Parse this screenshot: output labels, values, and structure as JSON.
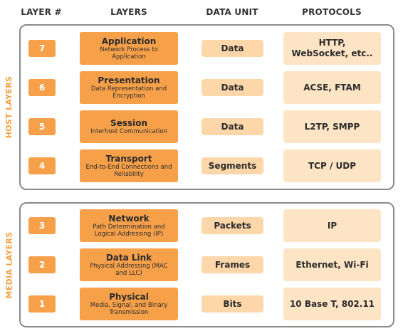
{
  "headers": {
    "layer_num": "LAYER #",
    "layers": "LAYERS",
    "data_unit": "DATA UNIT",
    "protocols": "PROTOCOLS"
  },
  "groups": {
    "host": "HOST LAYERS",
    "media": "MEDIA LAYERS"
  },
  "colors": {
    "number_box": "#f7a04a",
    "layer_box": "#f7a04a",
    "data_box": "#fdd7aa",
    "protocol_box": "#fde4c4",
    "group_border": "#8a8a8a",
    "group_label": "#f5a142"
  },
  "layers": [
    {
      "num": "7",
      "name": "Application",
      "desc": "Network Process to Application",
      "data_unit": "Data",
      "protocols": "HTTP, WebSocket, etc.."
    },
    {
      "num": "6",
      "name": "Presentation",
      "desc": "Data Representation and Encryption",
      "data_unit": "Data",
      "protocols": "ACSE, FTAM"
    },
    {
      "num": "5",
      "name": "Session",
      "desc": "Interhost Communication",
      "data_unit": "Data",
      "protocols": "L2TP, SMPP"
    },
    {
      "num": "4",
      "name": "Transport",
      "desc": "End-to-End Connections and Reliability",
      "data_unit": "Segments",
      "protocols": "TCP / UDP"
    },
    {
      "num": "3",
      "name": "Network",
      "desc": "Path Determination and Logical Addressing (IP)",
      "data_unit": "Packets",
      "protocols": "IP"
    },
    {
      "num": "2",
      "name": "Data Link",
      "desc": "Physical Addressing (MAC and LLC)",
      "data_unit": "Frames",
      "protocols": "Ethernet, Wi-Fi"
    },
    {
      "num": "1",
      "name": "Physical",
      "desc": "Media, Signal, and Binary Transmission",
      "data_unit": "Bits",
      "protocols": "10 Base T, 802.11"
    }
  ]
}
